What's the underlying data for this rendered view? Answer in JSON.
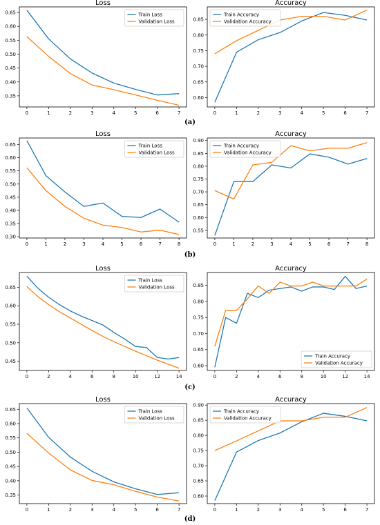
{
  "colors": {
    "train": "#1f77b4",
    "validation": "#ff7f0e"
  },
  "panels": [
    {
      "label": "(a)"
    },
    {
      "label": "(b)"
    },
    {
      "label": "(c)"
    },
    {
      "label": "(d)"
    }
  ],
  "chart_data": [
    {
      "panel": "(a)",
      "type": "line",
      "title": "Loss",
      "xlim": [
        0,
        7
      ],
      "ylim": [
        0.31,
        0.67
      ],
      "xticks": [
        0,
        1,
        2,
        3,
        4,
        5,
        6,
        7
      ],
      "yticks": [
        0.35,
        0.4,
        0.45,
        0.5,
        0.55,
        0.6,
        0.65
      ],
      "ytick_decimals": 2,
      "legend": "top-right",
      "series": [
        {
          "name": "Train Loss",
          "color": "#1f77b4",
          "x": [
            0,
            1,
            2,
            3,
            4,
            5,
            6,
            7
          ],
          "y": [
            0.658,
            0.555,
            0.483,
            0.432,
            0.396,
            0.373,
            0.353,
            0.358
          ]
        },
        {
          "name": "Validation Loss",
          "color": "#ff7f0e",
          "x": [
            0,
            1,
            2,
            3,
            4,
            5,
            6,
            7
          ],
          "y": [
            0.563,
            0.492,
            0.43,
            0.389,
            0.372,
            0.353,
            0.334,
            0.316
          ]
        }
      ]
    },
    {
      "panel": "(a)",
      "type": "line",
      "title": "Accuracy",
      "xlim": [
        0,
        7
      ],
      "ylim": [
        0.57,
        0.89
      ],
      "xticks": [
        0,
        1,
        2,
        3,
        4,
        5,
        6,
        7
      ],
      "yticks": [
        0.6,
        0.65,
        0.7,
        0.75,
        0.8,
        0.85
      ],
      "ytick_decimals": 2,
      "legend": "top-left",
      "series": [
        {
          "name": "Train Accuracy",
          "color": "#1f77b4",
          "x": [
            0,
            1,
            2,
            3,
            4,
            5,
            6,
            7
          ],
          "y": [
            0.585,
            0.745,
            0.785,
            0.808,
            0.845,
            0.872,
            0.863,
            0.848
          ]
        },
        {
          "name": "Validation Accuracy",
          "color": "#ff7f0e",
          "x": [
            0,
            1,
            2,
            3,
            4,
            5,
            6,
            7
          ],
          "y": [
            0.74,
            0.782,
            0.815,
            0.848,
            0.86,
            0.86,
            0.848,
            0.88
          ]
        }
      ]
    },
    {
      "panel": "(b)",
      "type": "line",
      "title": "Loss",
      "xlim": [
        0,
        8
      ],
      "ylim": [
        0.295,
        0.675
      ],
      "xticks": [
        0,
        1,
        2,
        3,
        4,
        5,
        6,
        7,
        8
      ],
      "yticks": [
        0.3,
        0.35,
        0.4,
        0.45,
        0.5,
        0.55,
        0.6,
        0.65
      ],
      "ytick_decimals": 2,
      "legend": "top-right",
      "series": [
        {
          "name": "Train Loss",
          "color": "#1f77b4",
          "x": [
            0,
            1,
            2,
            3,
            4,
            5,
            6,
            7,
            8
          ],
          "y": [
            0.665,
            0.532,
            0.47,
            0.415,
            0.428,
            0.377,
            0.373,
            0.405,
            0.355
          ]
        },
        {
          "name": "Validation Loss",
          "color": "#ff7f0e",
          "x": [
            0,
            1,
            2,
            3,
            4,
            5,
            6,
            7,
            8
          ],
          "y": [
            0.562,
            0.475,
            0.415,
            0.37,
            0.344,
            0.335,
            0.318,
            0.325,
            0.308
          ]
        }
      ]
    },
    {
      "panel": "(b)",
      "type": "line",
      "title": "Accuracy",
      "xlim": [
        0,
        8
      ],
      "ylim": [
        0.52,
        0.91
      ],
      "xticks": [
        0,
        1,
        2,
        3,
        4,
        5,
        6,
        7,
        8
      ],
      "yticks": [
        0.55,
        0.6,
        0.65,
        0.7,
        0.75,
        0.8,
        0.85,
        0.9
      ],
      "ytick_decimals": 2,
      "legend": "top-left",
      "series": [
        {
          "name": "Train Accuracy",
          "color": "#1f77b4",
          "x": [
            0,
            1,
            2,
            3,
            4,
            5,
            6,
            7,
            8
          ],
          "y": [
            0.53,
            0.74,
            0.74,
            0.805,
            0.793,
            0.848,
            0.835,
            0.808,
            0.83
          ]
        },
        {
          "name": "Validation Accuracy",
          "color": "#ff7f0e",
          "x": [
            0,
            1,
            2,
            3,
            4,
            5,
            6,
            7,
            8
          ],
          "y": [
            0.705,
            0.672,
            0.805,
            0.815,
            0.88,
            0.86,
            0.87,
            0.87,
            0.892
          ]
        }
      ]
    },
    {
      "panel": "(c)",
      "type": "line",
      "title": "Loss",
      "xlim": [
        0,
        14
      ],
      "ylim": [
        0.425,
        0.69
      ],
      "xticks": [
        0,
        2,
        4,
        6,
        8,
        10,
        12,
        14
      ],
      "yticks": [
        0.45,
        0.5,
        0.55,
        0.6,
        0.65
      ],
      "ytick_decimals": 2,
      "legend": "top-right",
      "series": [
        {
          "name": "Train Loss",
          "color": "#1f77b4",
          "x": [
            0,
            1,
            2,
            3,
            4,
            5,
            6,
            7,
            8,
            9,
            10,
            11,
            12,
            13,
            14
          ],
          "y": [
            0.68,
            0.648,
            0.623,
            0.603,
            0.586,
            0.572,
            0.56,
            0.548,
            0.528,
            0.51,
            0.49,
            0.487,
            0.46,
            0.456,
            0.46
          ]
        },
        {
          "name": "Validation Loss",
          "color": "#ff7f0e",
          "x": [
            0,
            1,
            2,
            3,
            4,
            5,
            6,
            7,
            8,
            9,
            10,
            11,
            12,
            13,
            14
          ],
          "y": [
            0.652,
            0.625,
            0.603,
            0.584,
            0.567,
            0.55,
            0.533,
            0.517,
            0.503,
            0.49,
            0.477,
            0.465,
            0.453,
            0.442,
            0.431
          ]
        }
      ]
    },
    {
      "panel": "(c)",
      "type": "line",
      "title": "Accuracy",
      "xlim": [
        0,
        14
      ],
      "ylim": [
        0.585,
        0.89
      ],
      "xticks": [
        0,
        2,
        4,
        6,
        8,
        10,
        12,
        14
      ],
      "yticks": [
        0.6,
        0.65,
        0.7,
        0.75,
        0.8,
        0.85
      ],
      "ytick_decimals": 2,
      "legend": "bottom-right",
      "series": [
        {
          "name": "Train Accuracy",
          "color": "#1f77b4",
          "x": [
            0,
            1,
            2,
            3,
            4,
            5,
            6,
            7,
            8,
            9,
            10,
            11,
            12,
            13,
            14
          ],
          "y": [
            0.595,
            0.75,
            0.732,
            0.825,
            0.812,
            0.835,
            0.84,
            0.845,
            0.832,
            0.845,
            0.845,
            0.837,
            0.878,
            0.84,
            0.848
          ]
        },
        {
          "name": "Validation Accuracy",
          "color": "#ff7f0e",
          "x": [
            0,
            1,
            2,
            3,
            4,
            5,
            6,
            7,
            8,
            9,
            10,
            11,
            12,
            13,
            14
          ],
          "y": [
            0.66,
            0.772,
            0.772,
            0.808,
            0.848,
            0.825,
            0.86,
            0.848,
            0.848,
            0.86,
            0.848,
            0.848,
            0.848,
            0.848,
            0.87
          ]
        }
      ]
    },
    {
      "panel": "(d)",
      "type": "line",
      "title": "Loss",
      "xlim": [
        0,
        7
      ],
      "ylim": [
        0.32,
        0.67
      ],
      "xticks": [
        0,
        1,
        2,
        3,
        4,
        5,
        6,
        7
      ],
      "yticks": [
        0.35,
        0.4,
        0.45,
        0.5,
        0.55,
        0.6,
        0.65
      ],
      "ytick_decimals": 2,
      "legend": "top-right",
      "series": [
        {
          "name": "Train Loss",
          "color": "#1f77b4",
          "x": [
            0,
            1,
            2,
            3,
            4,
            5,
            6,
            7
          ],
          "y": [
            0.655,
            0.552,
            0.483,
            0.433,
            0.396,
            0.372,
            0.352,
            0.358
          ]
        },
        {
          "name": "Validation Loss",
          "color": "#ff7f0e",
          "x": [
            0,
            1,
            2,
            3,
            4,
            5,
            6,
            7
          ],
          "y": [
            0.566,
            0.497,
            0.438,
            0.401,
            0.386,
            0.363,
            0.343,
            0.329
          ]
        }
      ]
    },
    {
      "panel": "(d)",
      "type": "line",
      "title": "Accuracy",
      "xlim": [
        0,
        7
      ],
      "ylim": [
        0.575,
        0.905
      ],
      "xticks": [
        0,
        1,
        2,
        3,
        4,
        5,
        6,
        7
      ],
      "yticks": [
        0.6,
        0.65,
        0.7,
        0.75,
        0.8,
        0.85,
        0.9
      ],
      "ytick_decimals": 2,
      "legend": "top-left",
      "series": [
        {
          "name": "Train Accuracy",
          "color": "#1f77b4",
          "x": [
            0,
            1,
            2,
            3,
            4,
            5,
            6,
            7
          ],
          "y": [
            0.585,
            0.745,
            0.783,
            0.808,
            0.845,
            0.873,
            0.863,
            0.848
          ]
        },
        {
          "name": "Validation Accuracy",
          "color": "#ff7f0e",
          "x": [
            0,
            1,
            2,
            3,
            4,
            5,
            6,
            7
          ],
          "y": [
            0.75,
            0.782,
            0.815,
            0.848,
            0.848,
            0.86,
            0.86,
            0.892
          ]
        }
      ]
    }
  ]
}
